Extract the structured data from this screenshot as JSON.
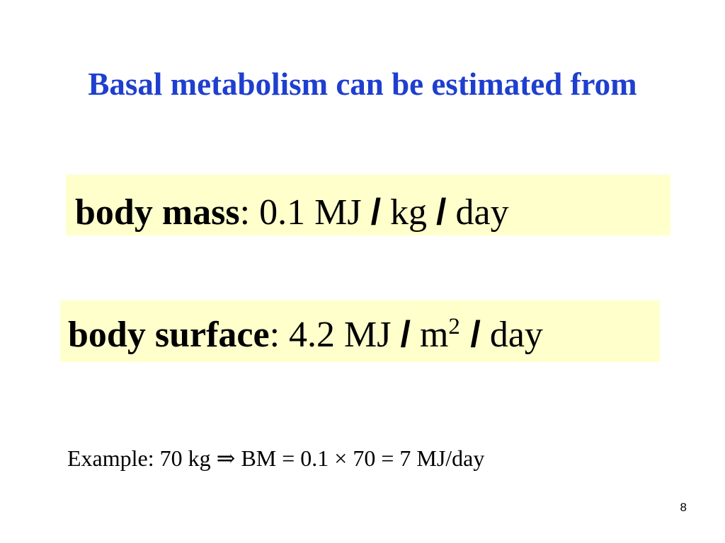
{
  "slide": {
    "title": "Basal metabolism can be estimated from",
    "title_color": "#1f3fce",
    "box_color": "#ffffcc",
    "formulas": [
      {
        "term": "body mass",
        "colon": ":",
        "value": " 0.1 MJ ",
        "slash1": "/",
        "unit": " kg ",
        "slash2": "/",
        "period": " day"
      },
      {
        "term": "body surface",
        "colon": ":",
        "value": " 4.2 MJ ",
        "slash1": "/",
        "unit": " m",
        "unit_superscript": "2",
        "slash2": " /",
        "period": " day"
      }
    ],
    "example": {
      "prefix": "Example: 70 kg ",
      "implies_symbol": "⇒",
      "body": " BM = 0.1  × 70 = 7 MJ/day"
    },
    "page_number": "8"
  }
}
